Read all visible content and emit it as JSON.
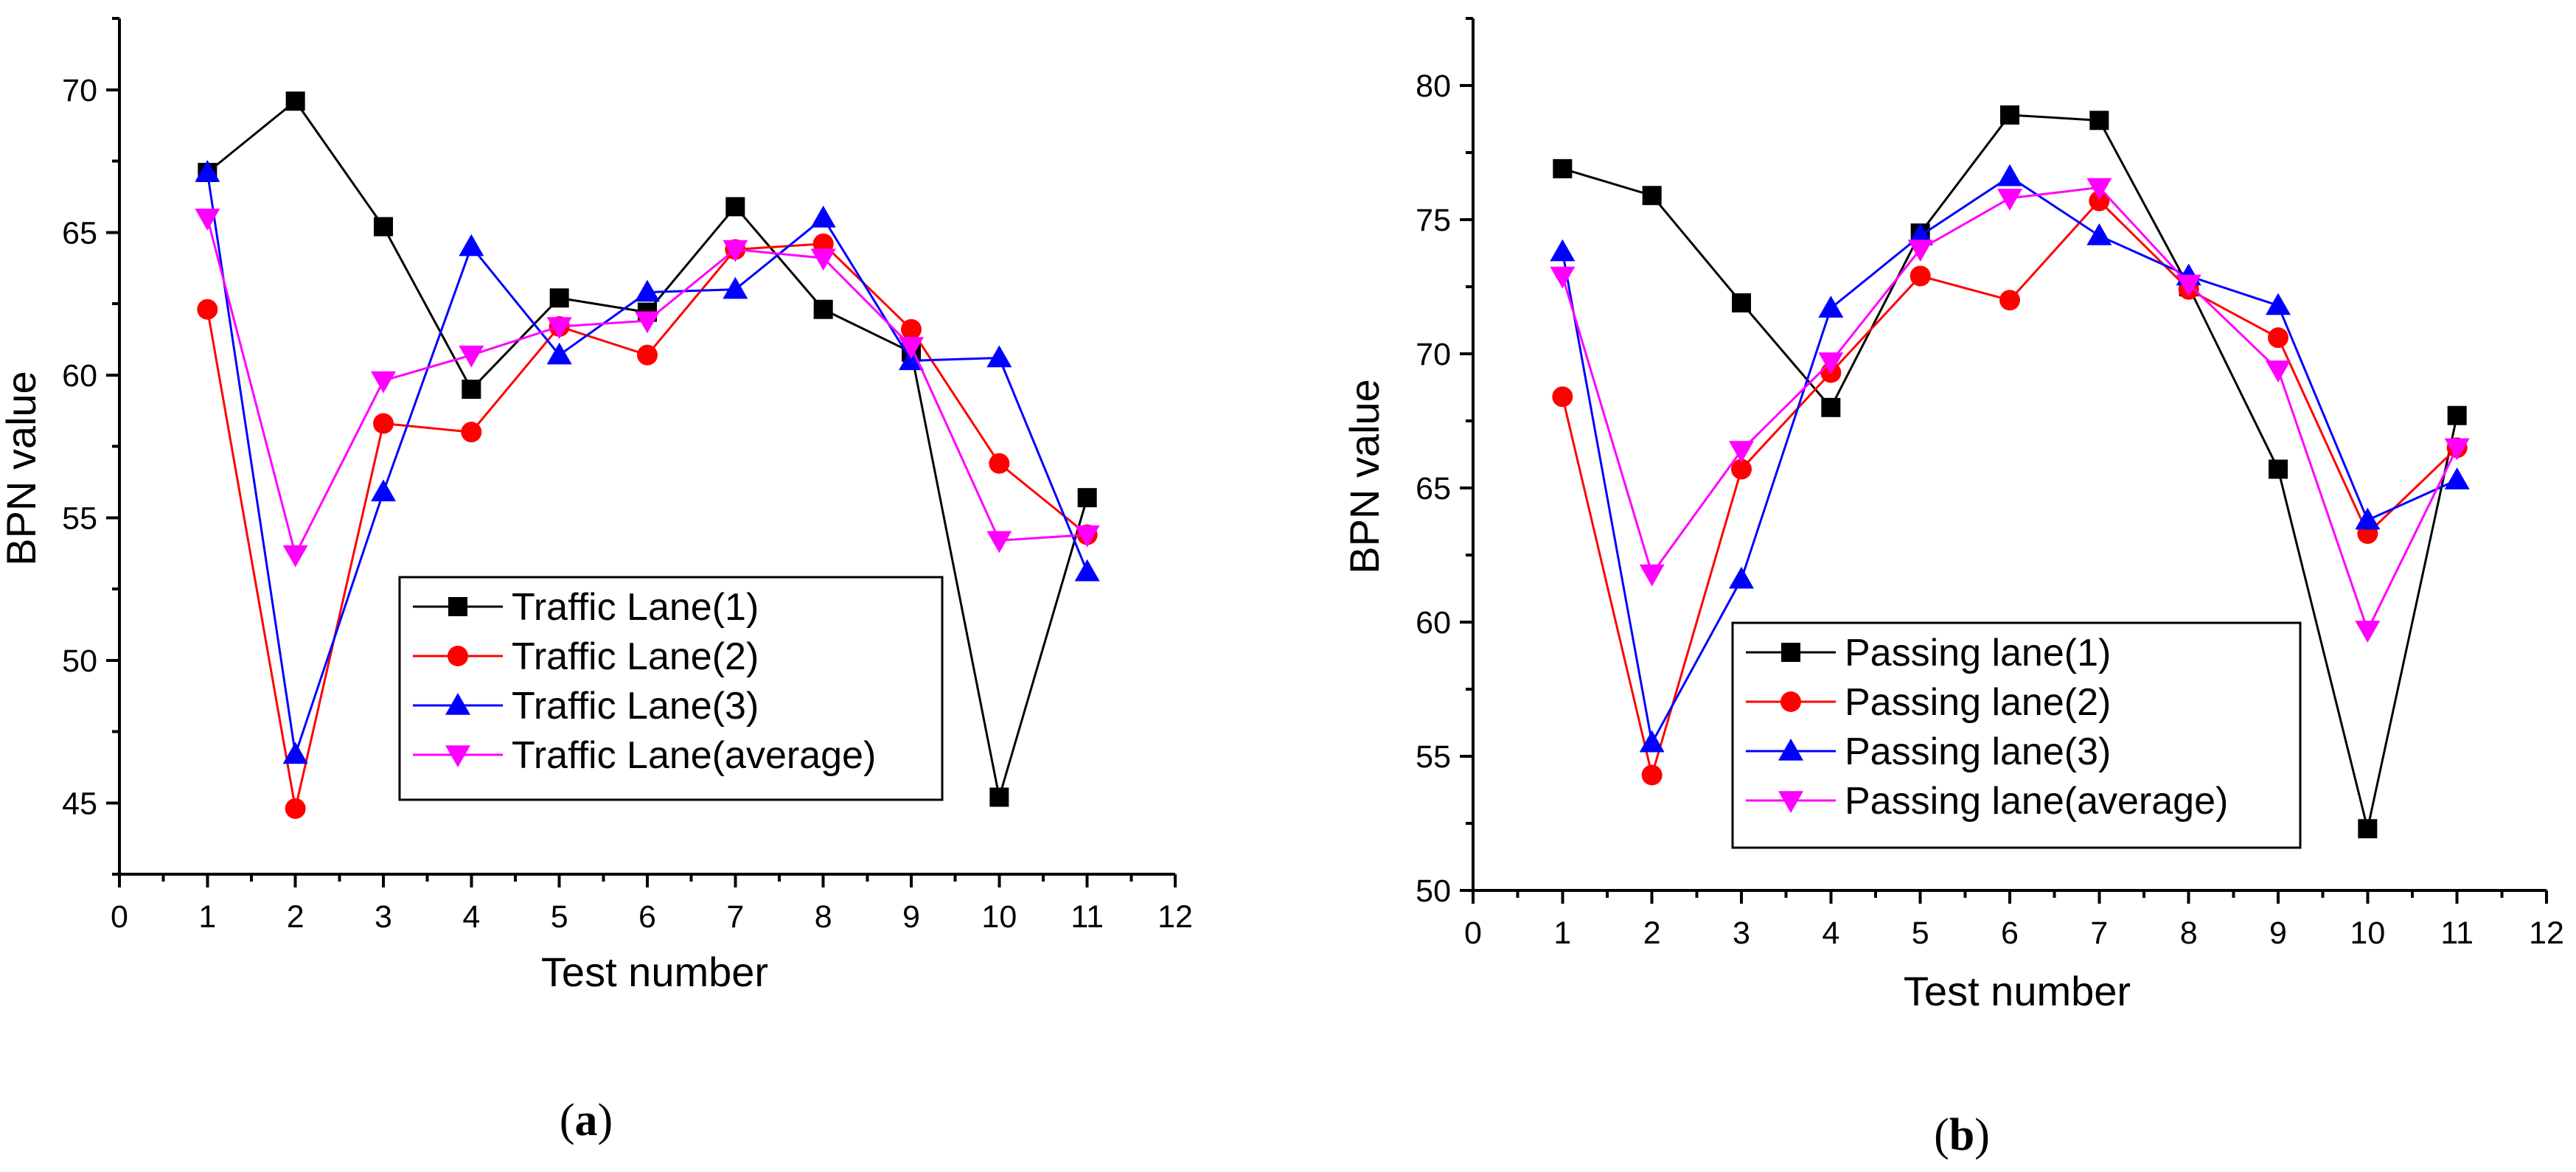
{
  "chart_data": [
    {
      "type": "line",
      "panel_label": "a",
      "xlabel": "Test number",
      "ylabel": "BPN value",
      "xlim": [
        0,
        12
      ],
      "ylim": [
        42.5,
        72.5
      ],
      "xticks": [
        0,
        1,
        2,
        3,
        4,
        5,
        6,
        7,
        8,
        9,
        10,
        11,
        12
      ],
      "yticks": [
        45,
        50,
        55,
        60,
        65,
        70
      ],
      "legend_position": "bottom-right",
      "x": [
        1,
        2,
        3,
        4,
        5,
        6,
        7,
        8,
        9,
        10,
        11
      ],
      "series": [
        {
          "name": "Traffic Lane(1)",
          "color": "#000000",
          "marker": "square",
          "values": [
            67.1,
            69.6,
            65.2,
            59.5,
            62.7,
            62.2,
            65.9,
            62.3,
            60.8,
            45.2,
            55.7
          ]
        },
        {
          "name": "Traffic Lane(2)",
          "color": "#ff0000",
          "marker": "circle",
          "values": [
            62.3,
            44.8,
            58.3,
            58.0,
            61.7,
            60.7,
            64.4,
            64.6,
            61.6,
            56.9,
            54.4
          ]
        },
        {
          "name": "Traffic Lane(3)",
          "color": "#0000ff",
          "marker": "triangle-up",
          "values": [
            67.1,
            46.7,
            55.9,
            64.5,
            60.7,
            62.9,
            63.0,
            65.5,
            60.5,
            60.6,
            53.1
          ]
        },
        {
          "name": "Traffic Lane(average)",
          "color": "#ff00ff",
          "marker": "triangle-down",
          "values": [
            65.5,
            53.7,
            59.8,
            60.7,
            61.7,
            61.9,
            64.4,
            64.1,
            61.0,
            54.2,
            54.4
          ]
        }
      ]
    },
    {
      "type": "line",
      "panel_label": "b",
      "xlabel": "Test number",
      "ylabel": "BPN value",
      "xlim": [
        0,
        12
      ],
      "ylim": [
        50,
        82.5
      ],
      "xticks": [
        0,
        1,
        2,
        3,
        4,
        5,
        6,
        7,
        8,
        9,
        10,
        11,
        12
      ],
      "yticks": [
        50,
        55,
        60,
        65,
        70,
        75,
        80
      ],
      "legend_position": "bottom-right",
      "x": [
        1,
        2,
        3,
        4,
        5,
        6,
        7,
        8,
        9,
        10,
        11
      ],
      "series": [
        {
          "name": "Passing lane(1)",
          "color": "#000000",
          "marker": "square",
          "values": [
            76.9,
            75.9,
            71.9,
            68.0,
            74.5,
            78.9,
            78.7,
            72.5,
            65.7,
            52.3,
            67.7
          ]
        },
        {
          "name": "Passing lane(2)",
          "color": "#ff0000",
          "marker": "circle",
          "values": [
            68.4,
            54.3,
            65.7,
            69.3,
            72.9,
            72.0,
            75.7,
            72.4,
            70.6,
            63.3,
            66.5
          ]
        },
        {
          "name": "Passing lane(3)",
          "color": "#0000ff",
          "marker": "triangle-up",
          "values": [
            73.8,
            55.5,
            61.6,
            71.7,
            74.4,
            76.6,
            74.4,
            72.9,
            71.8,
            63.8,
            65.3
          ]
        },
        {
          "name": "Passing lane(average)",
          "color": "#ff00ff",
          "marker": "triangle-down",
          "values": [
            72.9,
            61.8,
            66.4,
            69.7,
            73.9,
            75.8,
            76.2,
            72.6,
            69.4,
            59.7,
            66.5
          ]
        }
      ]
    }
  ]
}
